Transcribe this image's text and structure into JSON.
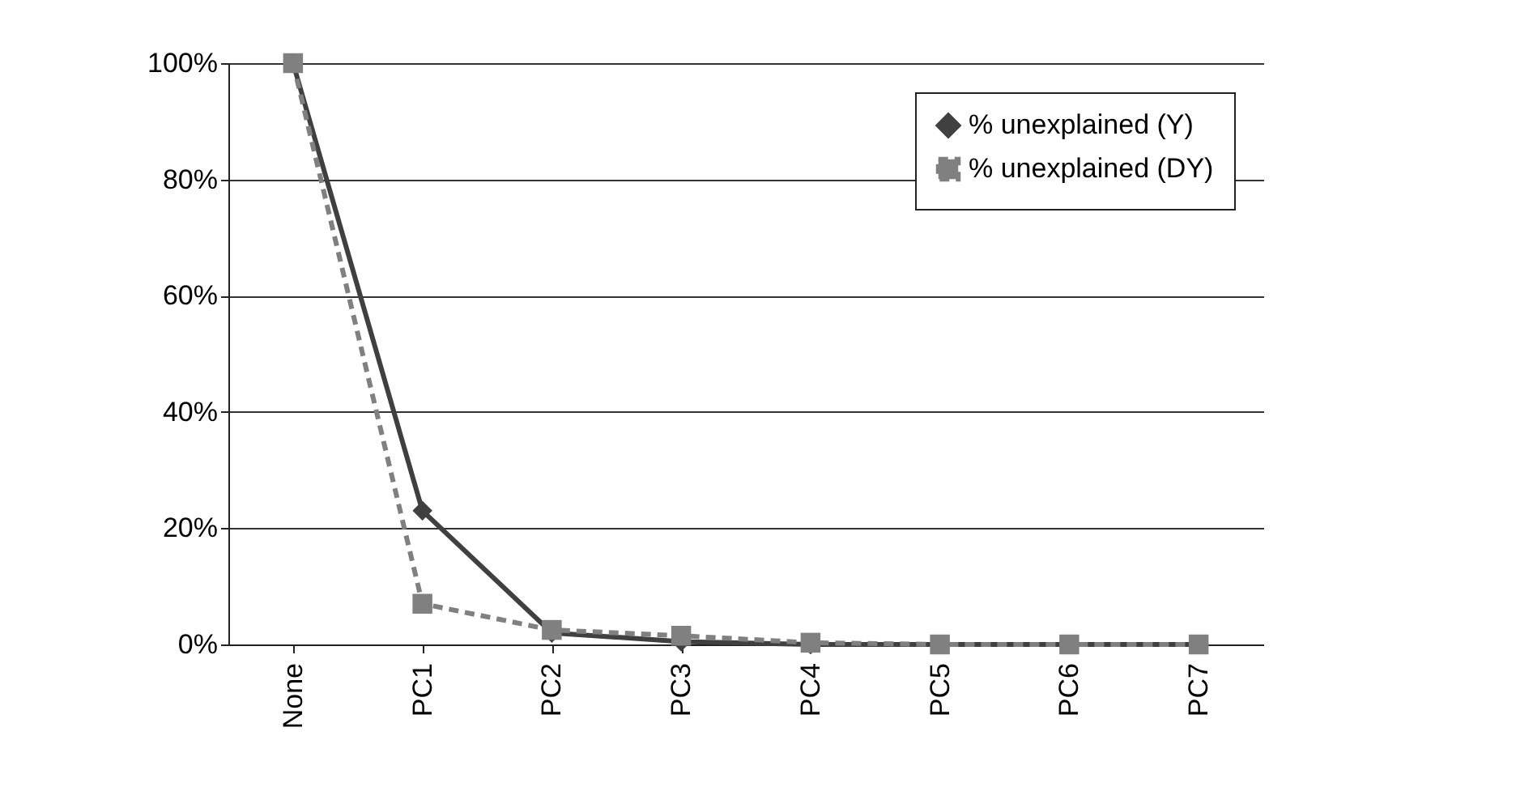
{
  "chart_data": {
    "type": "line",
    "categories": [
      "None",
      "PC1",
      "PC2",
      "PC3",
      "PC4",
      "PC5",
      "PC6",
      "PC7"
    ],
    "series": [
      {
        "name": "% unexplained (Y)",
        "color": "#404040",
        "marker": "diamond",
        "line_style": "solid",
        "values": [
          100,
          23,
          2,
          0.5,
          0,
          0,
          0,
          0
        ]
      },
      {
        "name": "% unexplained (DY)",
        "color": "#808080",
        "marker": "square",
        "line_style": "dashed",
        "values": [
          100,
          7,
          2.5,
          1.5,
          0.3,
          0,
          0,
          0
        ]
      }
    ],
    "ylim": [
      0,
      100
    ],
    "yticks": [
      {
        "value": 0,
        "label": "0%"
      },
      {
        "value": 20,
        "label": "20%"
      },
      {
        "value": 40,
        "label": "40%"
      },
      {
        "value": 60,
        "label": "60%"
      },
      {
        "value": 80,
        "label": "80%"
      },
      {
        "value": 100,
        "label": "100%"
      }
    ],
    "grid": "y",
    "legend": "top right"
  }
}
